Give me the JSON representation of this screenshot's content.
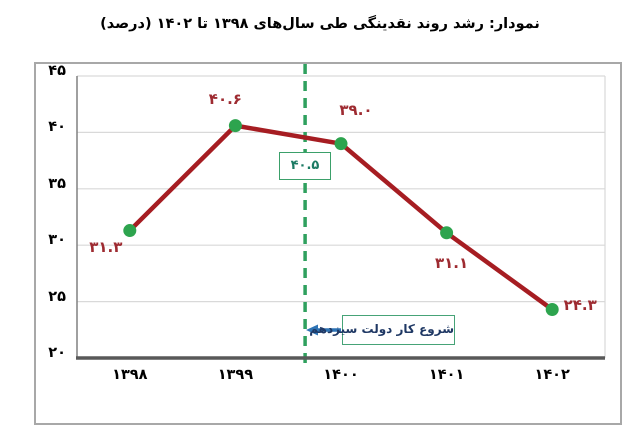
{
  "chart_data": {
    "type": "line",
    "title": "نمودار: رشد روند نقدینگی طی سال‌های ۱۳۹۸ تا ۱۴۰۲ (درصد)",
    "categories": [
      "۱۳۹۸",
      "۱۳۹۹",
      "۱۴۰۰",
      "۱۴۰۱",
      "۱۴۰۲"
    ],
    "values": [
      31.3,
      40.6,
      39.0,
      31.1,
      24.3
    ],
    "point_labels": [
      "۳۱.۳",
      "۴۰.۶",
      "۳۹.۰",
      "۳۱.۱",
      "۲۴.۳"
    ],
    "xlabel": "",
    "ylabel": "",
    "ylim": [
      20,
      45
    ],
    "yticks": [
      {
        "value": 20,
        "label": "۲۰"
      },
      {
        "value": 25,
        "label": "۲۵"
      },
      {
        "value": 30,
        "label": "۳۰"
      },
      {
        "value": 35,
        "label": "۳۵"
      },
      {
        "value": 40,
        "label": "۴۰"
      },
      {
        "value": 45,
        "label": "۴۵"
      }
    ],
    "grid": true,
    "legend": false,
    "annotations": {
      "vline": {
        "style": "dashed",
        "x_fraction": 0.432,
        "label": "۴۰.۵"
      },
      "callout": {
        "text": "شروع کار دولت سیزدهم",
        "arrow_direction": "left"
      }
    },
    "colors": {
      "line": "#A61D22",
      "marker": "#2DA44E",
      "dashed_line": "#2FA05E",
      "data_label": "#9E2B31",
      "value_box_border": "#3BA06A",
      "value_box_text": "#1B7A63",
      "callout_border": "#46A377",
      "callout_text": "#1F3864",
      "arrow": "#2E74B5",
      "axis": "#595959",
      "y_axis": "#808080",
      "grid": "#D9D9D9"
    }
  }
}
